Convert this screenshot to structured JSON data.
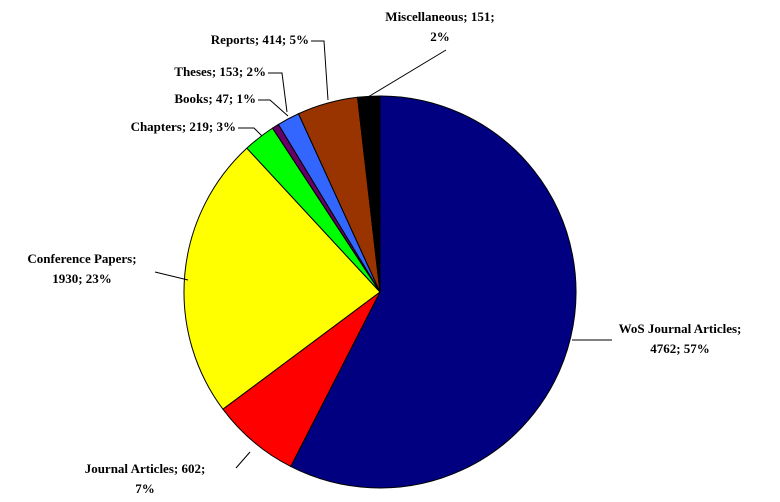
{
  "chart_data": {
    "type": "pie",
    "categories": [
      "WoS Journal Articles",
      "Journal Articles",
      "Conference Papers",
      "Chapters",
      "Books",
      "Theses",
      "Reports",
      "Miscellaneous"
    ],
    "values": [
      4762,
      602,
      1930,
      219,
      47,
      153,
      414,
      151
    ],
    "labels": [
      [
        "WoS Journal Articles;",
        "4762; 57%"
      ],
      [
        "Journal Articles; 602;",
        "7%"
      ],
      [
        "Conference Papers;",
        "1930; 23%"
      ],
      [
        "Chapters; 219; 3%"
      ],
      [
        "Books; 47; 1%"
      ],
      [
        "Theses; 153; 2%"
      ],
      [
        "Reports; 414; 5%"
      ],
      [
        "Miscellaneous; 151;",
        "2%"
      ]
    ],
    "colors": [
      "#000080",
      "#ff0000",
      "#ffff00",
      "#00ff00",
      "#660066",
      "#3366ff",
      "#993300",
      "#000000"
    ]
  }
}
